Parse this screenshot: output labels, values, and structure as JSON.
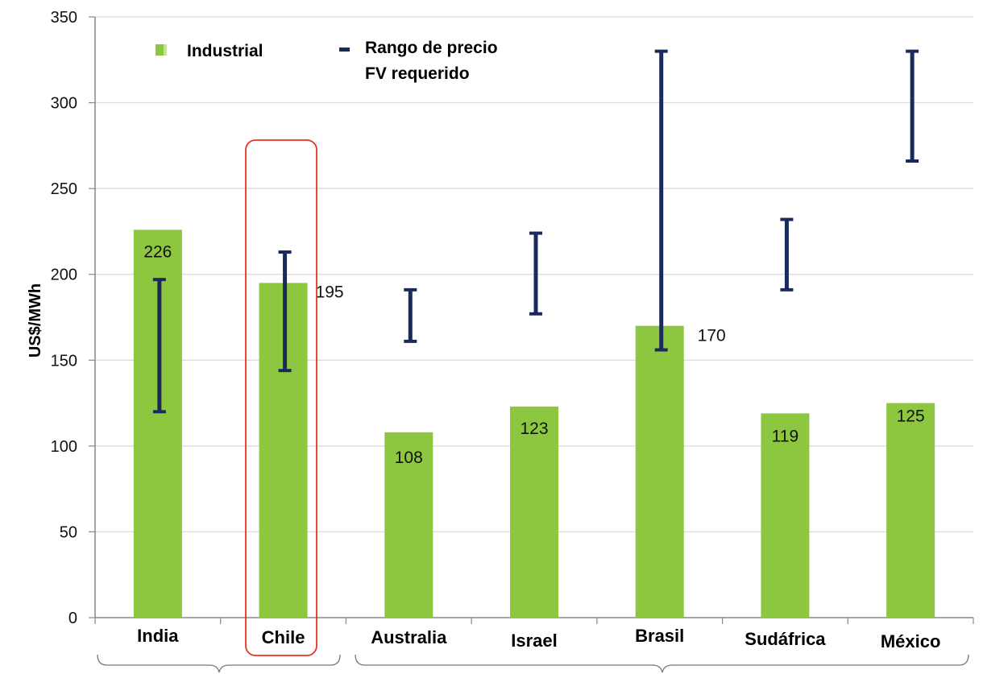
{
  "chart_data": {
    "type": "bar",
    "ylabel": "US$/MWh",
    "ylim": [
      0,
      350
    ],
    "yticks": [
      0,
      50,
      100,
      150,
      200,
      250,
      300,
      350
    ],
    "categories": [
      "India",
      "Chile",
      "Australia",
      "Israel",
      "Brasil",
      "Sudáfrica",
      "México"
    ],
    "series": [
      {
        "name": "Industrial",
        "color": "#8dc63f",
        "values": [
          226,
          195,
          108,
          123,
          170,
          119,
          125
        ],
        "data_labels": [
          "226",
          "195",
          "108",
          "123",
          "170",
          "119",
          "125"
        ]
      }
    ],
    "ranges": {
      "name": "Rango de precio FV requerido",
      "color": "#1b2a5c",
      "low": [
        120,
        144,
        161,
        177,
        156,
        191,
        266
      ],
      "high": [
        197,
        213,
        191,
        224,
        330,
        232,
        330
      ]
    },
    "legend": {
      "bar_label": "Industrial",
      "range_label_line1": "Rango de precio",
      "range_label_line2": "FV requerido",
      "position": "top-left"
    },
    "highlight": {
      "category": "Chile",
      "color": "#e8321e"
    },
    "grid": true
  }
}
